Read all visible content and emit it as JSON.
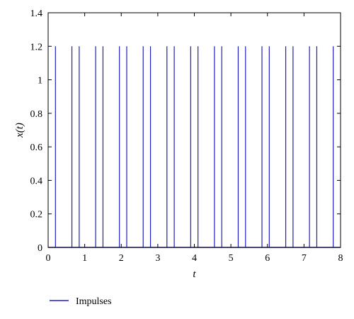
{
  "chart_data": {
    "type": "line",
    "title": "",
    "xlabel": "t",
    "ylabel": "x(t)",
    "xlim": [
      0,
      8
    ],
    "ylim": [
      0,
      1.4
    ],
    "xticks": [
      0,
      1,
      2,
      3,
      4,
      5,
      6,
      7,
      8
    ],
    "xtick_labels": [
      "0",
      "1",
      "2",
      "3",
      "4",
      "5",
      "6",
      "7",
      "8"
    ],
    "yticks": [
      0,
      0.2,
      0.4,
      0.6,
      0.8,
      1,
      1.2,
      1.4
    ],
    "ytick_labels": [
      "0",
      "0.2",
      "0.4",
      "0.6",
      "0.8",
      "1",
      "1.2",
      "1.4"
    ],
    "grid": false,
    "legend_position": "bottom-left",
    "series": [
      {
        "name": "Impulses",
        "color": "#1f1fbf",
        "impulse_height": 1.2,
        "impulse_times": [
          0.2,
          0.65,
          0.85,
          1.3,
          1.5,
          1.95,
          2.15,
          2.6,
          2.8,
          3.25,
          3.45,
          3.9,
          4.1,
          4.55,
          4.75,
          5.2,
          5.4,
          5.85,
          6.05,
          6.5,
          6.7,
          7.15,
          7.35,
          7.8
        ]
      }
    ]
  }
}
